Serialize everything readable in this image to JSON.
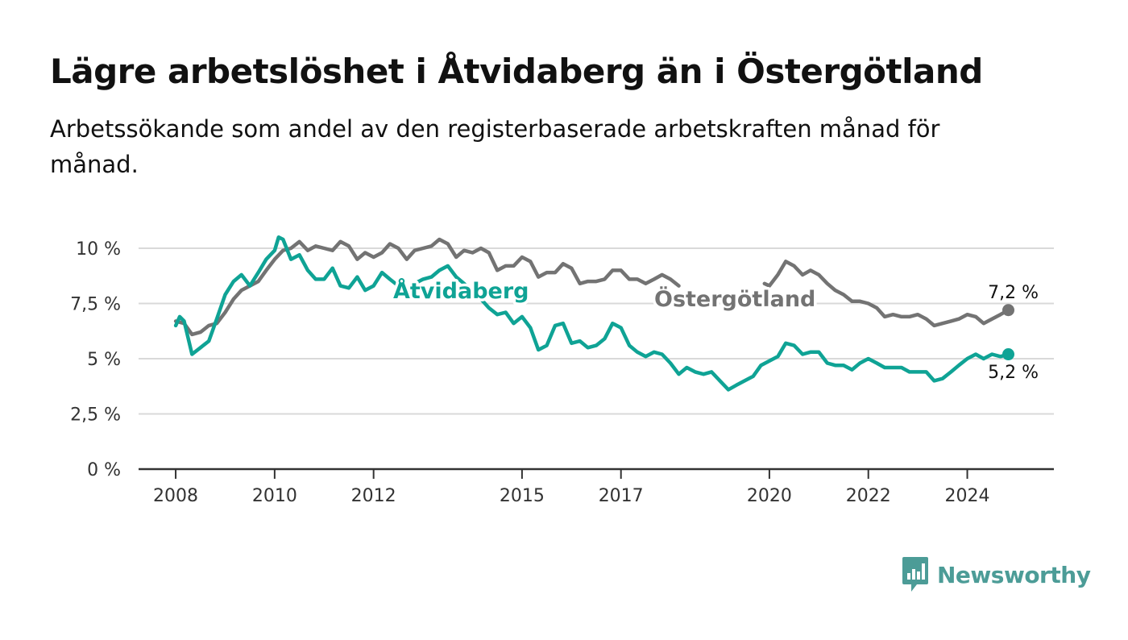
{
  "title": "Lägre arbetslöshet i Åtvidaberg än i Östergötland",
  "subtitle": "Arbetssökande som andel av den registerbaserade arbetskraften månad för månad.",
  "logo": {
    "text": "Newsworthy",
    "icon": "newsworthy-chart-icon",
    "color": "#4c9c97"
  },
  "chart_data": {
    "type": "line",
    "title": "Lägre arbetslöshet i Åtvidaberg än i Östergötland",
    "subtitle": "Arbetssökande som andel av den registerbaserade arbetskraften månad för månad.",
    "xlabel": "",
    "ylabel": "",
    "x_ticks": [
      "2008",
      "2010",
      "2012",
      "2015",
      "2017",
      "2020",
      "2022",
      "2024"
    ],
    "x_tick_values": [
      2008,
      2010,
      2012,
      2015,
      2017,
      2020,
      2022,
      2024
    ],
    "xlim": [
      2007.25,
      2025.75
    ],
    "y_ticks": [
      "0 %",
      "2,5 %",
      "5 %",
      "7,5 %",
      "10 %"
    ],
    "y_tick_values": [
      0,
      2.5,
      5,
      7.5,
      10
    ],
    "ylim": [
      0,
      10
    ],
    "grid": "horizontal",
    "legend": "direct labels",
    "series": [
      {
        "name": "Östergötland",
        "color": "#737373",
        "end_label": "7,2 %",
        "points": [
          [
            2008.0,
            6.7
          ],
          [
            2008.17,
            6.6
          ],
          [
            2008.33,
            6.1
          ],
          [
            2008.5,
            6.2
          ],
          [
            2008.67,
            6.5
          ],
          [
            2008.83,
            6.6
          ],
          [
            2009.0,
            7.1
          ],
          [
            2009.17,
            7.7
          ],
          [
            2009.33,
            8.1
          ],
          [
            2009.5,
            8.3
          ],
          [
            2009.67,
            8.5
          ],
          [
            2009.83,
            9.0
          ],
          [
            2010.0,
            9.5
          ],
          [
            2010.17,
            9.9
          ],
          [
            2010.33,
            10.0
          ],
          [
            2010.5,
            10.3
          ],
          [
            2010.67,
            9.9
          ],
          [
            2010.83,
            10.1
          ],
          [
            2011.0,
            10.0
          ],
          [
            2011.17,
            9.9
          ],
          [
            2011.33,
            10.3
          ],
          [
            2011.5,
            10.1
          ],
          [
            2011.67,
            9.5
          ],
          [
            2011.83,
            9.8
          ],
          [
            2012.0,
            9.6
          ],
          [
            2012.17,
            9.8
          ],
          [
            2012.33,
            10.2
          ],
          [
            2012.5,
            10.0
          ],
          [
            2012.67,
            9.5
          ],
          [
            2012.83,
            9.9
          ],
          [
            2013.0,
            10.0
          ],
          [
            2013.17,
            10.1
          ],
          [
            2013.33,
            10.4
          ],
          [
            2013.5,
            10.2
          ],
          [
            2013.67,
            9.6
          ],
          [
            2013.83,
            9.9
          ],
          [
            2014.0,
            9.8
          ],
          [
            2014.17,
            10.0
          ],
          [
            2014.33,
            9.8
          ],
          [
            2014.5,
            9.0
          ],
          [
            2014.67,
            9.2
          ],
          [
            2014.83,
            9.2
          ],
          [
            2015.0,
            9.6
          ],
          [
            2015.17,
            9.4
          ],
          [
            2015.33,
            8.7
          ],
          [
            2015.5,
            8.9
          ],
          [
            2015.67,
            8.9
          ],
          [
            2015.83,
            9.3
          ],
          [
            2016.0,
            9.1
          ],
          [
            2016.17,
            8.4
          ],
          [
            2016.33,
            8.5
          ],
          [
            2016.5,
            8.5
          ],
          [
            2016.67,
            8.6
          ],
          [
            2016.83,
            9.0
          ],
          [
            2017.0,
            9.0
          ],
          [
            2017.17,
            8.6
          ],
          [
            2017.33,
            8.6
          ],
          [
            2017.5,
            8.4
          ],
          [
            2017.67,
            8.6
          ],
          [
            2017.83,
            8.8
          ],
          [
            2018.0,
            8.6
          ],
          [
            2018.17,
            8.3
          ],
          null,
          [
            2019.9,
            8.4
          ],
          [
            2020.0,
            8.3
          ],
          [
            2020.17,
            8.8
          ],
          [
            2020.33,
            9.4
          ],
          [
            2020.5,
            9.2
          ],
          [
            2020.67,
            8.8
          ],
          [
            2020.83,
            9.0
          ],
          [
            2021.0,
            8.8
          ],
          [
            2021.17,
            8.4
          ],
          [
            2021.33,
            8.1
          ],
          [
            2021.5,
            7.9
          ],
          [
            2021.67,
            7.6
          ],
          [
            2021.83,
            7.6
          ],
          [
            2022.0,
            7.5
          ],
          [
            2022.17,
            7.3
          ],
          [
            2022.33,
            6.9
          ],
          [
            2022.5,
            7.0
          ],
          [
            2022.67,
            6.9
          ],
          [
            2022.83,
            6.9
          ],
          [
            2023.0,
            7.0
          ],
          [
            2023.17,
            6.8
          ],
          [
            2023.33,
            6.5
          ],
          [
            2023.5,
            6.6
          ],
          [
            2023.67,
            6.7
          ],
          [
            2023.83,
            6.8
          ],
          [
            2024.0,
            7.0
          ],
          [
            2024.17,
            6.9
          ],
          [
            2024.33,
            6.6
          ],
          [
            2024.5,
            6.8
          ],
          [
            2024.67,
            7.0
          ],
          [
            2024.83,
            7.2
          ]
        ]
      },
      {
        "name": "Åtvidaberg",
        "color": "#0fa395",
        "end_label": "5,2 %",
        "points": [
          [
            2008.0,
            6.5
          ],
          [
            2008.08,
            6.9
          ],
          [
            2008.17,
            6.7
          ],
          [
            2008.33,
            5.2
          ],
          [
            2008.5,
            5.5
          ],
          [
            2008.67,
            5.8
          ],
          [
            2008.83,
            6.8
          ],
          [
            2009.0,
            7.9
          ],
          [
            2009.17,
            8.5
          ],
          [
            2009.33,
            8.8
          ],
          [
            2009.5,
            8.3
          ],
          [
            2009.67,
            8.9
          ],
          [
            2009.83,
            9.5
          ],
          [
            2010.0,
            9.9
          ],
          [
            2010.08,
            10.5
          ],
          [
            2010.17,
            10.4
          ],
          [
            2010.33,
            9.5
          ],
          [
            2010.5,
            9.7
          ],
          [
            2010.67,
            9.0
          ],
          [
            2010.83,
            8.6
          ],
          [
            2011.0,
            8.6
          ],
          [
            2011.17,
            9.1
          ],
          [
            2011.33,
            8.3
          ],
          [
            2011.5,
            8.2
          ],
          [
            2011.67,
            8.7
          ],
          [
            2011.83,
            8.1
          ],
          [
            2012.0,
            8.3
          ],
          [
            2012.17,
            8.9
          ],
          [
            2012.33,
            8.6
          ],
          [
            2012.5,
            8.3
          ],
          [
            2012.67,
            8.2
          ],
          [
            2012.83,
            8.4
          ],
          [
            2013.0,
            8.6
          ],
          [
            2013.17,
            8.7
          ],
          [
            2013.33,
            9.0
          ],
          [
            2013.5,
            9.2
          ],
          [
            2013.67,
            8.7
          ],
          [
            2013.83,
            8.4
          ],
          [
            2014.0,
            8.0
          ],
          [
            2014.17,
            7.7
          ],
          [
            2014.33,
            7.3
          ],
          [
            2014.5,
            7.0
          ],
          [
            2014.67,
            7.1
          ],
          [
            2014.83,
            6.6
          ],
          [
            2015.0,
            6.9
          ],
          [
            2015.17,
            6.4
          ],
          [
            2015.33,
            5.4
          ],
          [
            2015.5,
            5.6
          ],
          [
            2015.67,
            6.5
          ],
          [
            2015.83,
            6.6
          ],
          [
            2016.0,
            5.7
          ],
          [
            2016.17,
            5.8
          ],
          [
            2016.33,
            5.5
          ],
          [
            2016.5,
            5.6
          ],
          [
            2016.67,
            5.9
          ],
          [
            2016.83,
            6.6
          ],
          [
            2017.0,
            6.4
          ],
          [
            2017.17,
            5.6
          ],
          [
            2017.33,
            5.3
          ],
          [
            2017.5,
            5.1
          ],
          [
            2017.67,
            5.3
          ],
          [
            2017.83,
            5.2
          ],
          [
            2018.0,
            4.8
          ],
          [
            2018.17,
            4.3
          ],
          [
            2018.33,
            4.6
          ],
          [
            2018.5,
            4.4
          ],
          [
            2018.67,
            4.3
          ],
          [
            2018.83,
            4.4
          ],
          [
            2019.0,
            4.0
          ],
          [
            2019.17,
            3.6
          ],
          [
            2019.33,
            3.8
          ],
          [
            2019.5,
            4.0
          ],
          [
            2019.67,
            4.2
          ],
          [
            2019.83,
            4.7
          ],
          [
            2020.0,
            4.9
          ],
          [
            2020.17,
            5.1
          ],
          [
            2020.33,
            5.7
          ],
          [
            2020.5,
            5.6
          ],
          [
            2020.67,
            5.2
          ],
          [
            2020.83,
            5.3
          ],
          [
            2021.0,
            5.3
          ],
          [
            2021.17,
            4.8
          ],
          [
            2021.33,
            4.7
          ],
          [
            2021.5,
            4.7
          ],
          [
            2021.67,
            4.5
          ],
          [
            2021.83,
            4.8
          ],
          [
            2022.0,
            5.0
          ],
          [
            2022.17,
            4.8
          ],
          [
            2022.33,
            4.6
          ],
          [
            2022.5,
            4.6
          ],
          [
            2022.67,
            4.6
          ],
          [
            2022.83,
            4.4
          ],
          [
            2023.0,
            4.4
          ],
          [
            2023.17,
            4.4
          ],
          [
            2023.33,
            4.0
          ],
          [
            2023.5,
            4.1
          ],
          [
            2023.67,
            4.4
          ],
          [
            2023.83,
            4.7
          ],
          [
            2024.0,
            5.0
          ],
          [
            2024.17,
            5.2
          ],
          [
            2024.33,
            5.0
          ],
          [
            2024.5,
            5.2
          ],
          [
            2024.67,
            5.1
          ],
          [
            2024.83,
            5.2
          ]
        ]
      }
    ]
  }
}
